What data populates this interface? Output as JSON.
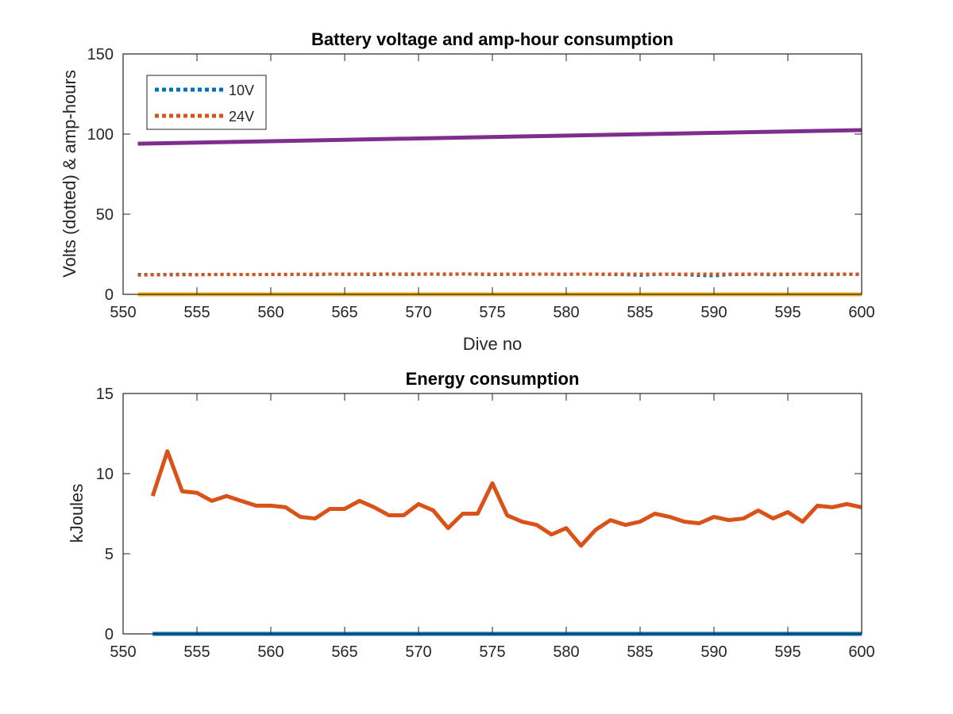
{
  "colors": {
    "series_blue": "#0072BD",
    "series_orange": "#D95319",
    "series_yellow": "#EDB120",
    "series_purple": "#7E2F8E",
    "axis": "#262626"
  },
  "chart_data": [
    {
      "type": "line",
      "title": "Battery voltage and amp-hour consumption",
      "xlabel": "Dive no",
      "ylabel": "Volts (dotted) & amp-hours",
      "xlim": [
        550,
        600
      ],
      "ylim": [
        0,
        150
      ],
      "xticks": [
        "550",
        "555",
        "560",
        "565",
        "570",
        "575",
        "580",
        "585",
        "590",
        "595",
        "600"
      ],
      "yticks": [
        "0",
        "50",
        "100",
        "150"
      ],
      "grid": false,
      "legend": {
        "placement": "top-left",
        "entries": [
          "10V",
          "24V"
        ]
      },
      "series": [
        {
          "name": "10V",
          "style": "dotted",
          "color": "#0072BD",
          "x": [
            551,
            552,
            553,
            554,
            555,
            556,
            557,
            558,
            559,
            560,
            561,
            562,
            563,
            564,
            565,
            566,
            567,
            568,
            569,
            570,
            571,
            572,
            573,
            574,
            575,
            576,
            577,
            578,
            579,
            580,
            581,
            582,
            583,
            584,
            585,
            586,
            587,
            588,
            589,
            590,
            591,
            592,
            593,
            594,
            595,
            596,
            597,
            598,
            599,
            600
          ],
          "values": [
            12.4,
            12.3,
            12.4,
            12.5,
            12.3,
            12.4,
            12.5,
            12.4,
            12.3,
            12.4,
            12.3,
            12.5,
            12.2,
            12.6,
            12.4,
            12.5,
            12.3,
            12.6,
            12.4,
            12.5,
            12.6,
            12.4,
            12.7,
            12.5,
            12.3,
            12.5,
            12.4,
            12.6,
            12.5,
            12.4,
            12.6,
            12.5,
            12.4,
            12.3,
            11.9,
            12.4,
            12.5,
            12.3,
            11.8,
            11.6,
            12.3,
            12.4,
            12.5,
            12.2,
            12.4,
            12.5,
            12.3,
            12.4,
            12.5,
            12.4
          ]
        },
        {
          "name": "24V",
          "style": "dotted",
          "color": "#D95319",
          "x": [
            551,
            552,
            553,
            554,
            555,
            556,
            557,
            558,
            559,
            560,
            561,
            562,
            563,
            564,
            565,
            566,
            567,
            568,
            569,
            570,
            571,
            572,
            573,
            574,
            575,
            576,
            577,
            578,
            579,
            580,
            581,
            582,
            583,
            584,
            585,
            586,
            587,
            588,
            589,
            590,
            591,
            592,
            593,
            594,
            595,
            596,
            597,
            598,
            599,
            600
          ],
          "values": [
            12.0,
            12.1,
            12.1,
            12.2,
            12.2,
            12.3,
            12.3,
            12.4,
            12.4,
            12.5,
            12.5,
            12.5,
            12.6,
            12.6,
            12.6,
            12.6,
            12.7,
            12.7,
            12.7,
            12.7,
            12.7,
            12.7,
            12.7,
            12.7,
            12.6,
            12.6,
            12.6,
            12.6,
            12.6,
            12.6,
            12.6,
            12.6,
            12.6,
            12.6,
            12.6,
            12.6,
            12.6,
            12.6,
            12.6,
            12.6,
            12.6,
            12.6,
            12.6,
            12.6,
            12.6,
            12.6,
            12.6,
            12.6,
            12.6,
            12.6
          ]
        },
        {
          "style": "solid",
          "color": "#EDB120",
          "x": [
            551,
            600
          ],
          "values": [
            0,
            0
          ]
        },
        {
          "style": "solid",
          "color": "#7E2F8E",
          "x": [
            551,
            600
          ],
          "values": [
            94,
            102.5
          ]
        }
      ]
    },
    {
      "type": "line",
      "title": "Energy consumption",
      "xlabel": "",
      "ylabel": "kJoules",
      "xlim": [
        550,
        600
      ],
      "ylim": [
        0,
        15
      ],
      "xticks": [
        "550",
        "555",
        "560",
        "565",
        "570",
        "575",
        "580",
        "585",
        "590",
        "595",
        "600"
      ],
      "yticks": [
        "0",
        "5",
        "10",
        "15"
      ],
      "grid": false,
      "series": [
        {
          "style": "solid",
          "color": "#D95319",
          "x": [
            552,
            553,
            554,
            555,
            556,
            557,
            558,
            559,
            560,
            561,
            562,
            563,
            564,
            565,
            566,
            567,
            568,
            569,
            570,
            571,
            572,
            573,
            574,
            575,
            576,
            577,
            578,
            579,
            580,
            581,
            582,
            583,
            584,
            585,
            586,
            587,
            588,
            589,
            590,
            591,
            592,
            593,
            594,
            595,
            596,
            597,
            598,
            599,
            600
          ],
          "values": [
            8.6,
            11.4,
            8.9,
            8.8,
            8.3,
            8.6,
            8.3,
            8.0,
            8.0,
            7.9,
            7.3,
            7.2,
            7.8,
            7.8,
            8.3,
            7.9,
            7.4,
            7.4,
            8.1,
            7.7,
            6.6,
            7.5,
            7.5,
            9.4,
            7.4,
            7.0,
            6.8,
            6.2,
            6.6,
            5.5,
            6.5,
            7.1,
            6.8,
            7.0,
            7.5,
            7.3,
            7.0,
            6.9,
            7.3,
            7.1,
            7.2,
            7.7,
            7.2,
            7.6,
            7.0,
            8.0,
            7.9,
            8.1,
            7.9
          ]
        },
        {
          "style": "solid",
          "color": "#0072BD",
          "x": [
            552,
            600
          ],
          "values": [
            0,
            0
          ]
        }
      ]
    }
  ]
}
